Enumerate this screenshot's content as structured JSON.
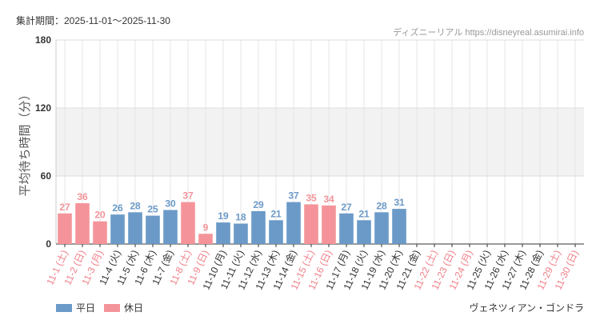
{
  "chart_data": {
    "type": "bar",
    "title": "集計期間：2025-11-01～2025-11-30",
    "source": "ディズニーリアル https://disneyreal.asumirai.info",
    "y_label": "平均待ち時間（分）",
    "attraction": "ヴェネツィアン・ゴンドラ",
    "categories": [
      "11-1 (土)",
      "11-2 (日)",
      "11-3 (月)",
      "11-4 (火)",
      "11-5 (水)",
      "11-6 (木)",
      "11-7 (金)",
      "11-8 (土)",
      "11-9 (日)",
      "11-10 (月)",
      "11-11 (火)",
      "11-12 (水)",
      "11-13 (木)",
      "11-14 (金)",
      "11-15 (土)",
      "11-16 (日)",
      "11-17 (月)",
      "11-18 (火)",
      "11-19 (水)",
      "11-20 (木)",
      "11-21 (金)",
      "11-22 (土)",
      "11-23 (日)",
      "11-24 (月)",
      "11-25 (火)",
      "11-26 (水)",
      "11-27 (木)",
      "11-28 (金)",
      "11-29 (土)",
      "11-30 (日)"
    ],
    "category_colors": [
      "#f0818a",
      "#f0818a",
      "#f0818a",
      "#333333",
      "#333333",
      "#333333",
      "#333333",
      "#f0818a",
      "#f0818a",
      "#333333",
      "#333333",
      "#333333",
      "#333333",
      "#333333",
      "#f0818a",
      "#f0818a",
      "#333333",
      "#333333",
      "#333333",
      "#333333",
      "#333333",
      "#f0818a",
      "#f0818a",
      "#f0818a",
      "#333333",
      "#333333",
      "#333333",
      "#333333",
      "#f0818a",
      "#f0818a"
    ],
    "series": [
      {
        "name": "平日",
        "color": "#6b9ac8",
        "values": [
          null,
          null,
          null,
          26,
          28,
          25,
          30,
          null,
          null,
          19,
          18,
          29,
          21,
          37,
          null,
          null,
          27,
          21,
          28,
          31,
          null,
          null,
          null,
          null,
          null,
          null,
          null,
          null,
          null,
          null
        ]
      },
      {
        "name": "休日",
        "color": "#f4949a",
        "values": [
          27,
          36,
          20,
          null,
          null,
          null,
          null,
          37,
          9,
          null,
          null,
          null,
          null,
          null,
          35,
          34,
          null,
          null,
          null,
          null,
          null,
          null,
          null,
          null,
          null,
          null,
          null,
          null,
          null,
          null
        ]
      }
    ],
    "ylim": [
      0,
      180
    ],
    "yticks": [
      0,
      60,
      120,
      180
    ],
    "grid": true
  }
}
